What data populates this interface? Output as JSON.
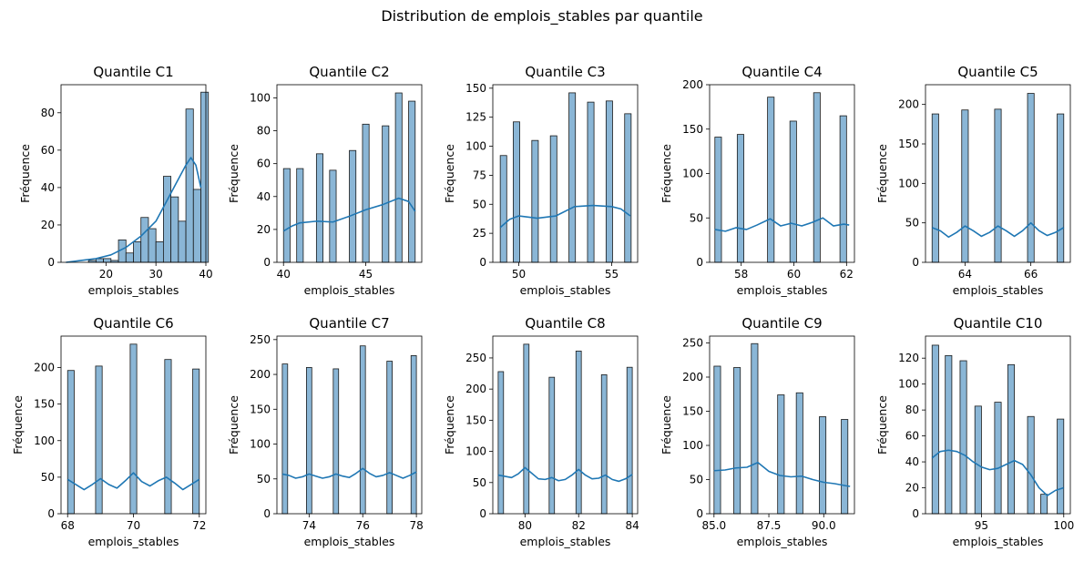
{
  "figure": {
    "suptitle": "Distribution de emplois_stables par quantile",
    "bar_color": "#8ab6d6",
    "bar_edge": "#1a1a1a",
    "kde_color": "#1f77b4"
  },
  "chart_data": [
    {
      "type": "bar",
      "title": "Quantile C1",
      "xlabel": "emplois_stables",
      "ylabel": "Fréquence",
      "xlim": [
        11,
        40
      ],
      "ylim": [
        0,
        95
      ],
      "xticks": [
        20,
        30,
        40
      ],
      "xtick_labels": [
        "20",
        "30",
        "40"
      ],
      "yticks": [
        0,
        20,
        40,
        60,
        80
      ],
      "ytick_labels": [
        "0",
        "20",
        "40",
        "60",
        "80"
      ],
      "bars": [
        [
          12.0,
          13.5,
          0
        ],
        [
          13.5,
          15.0,
          0
        ],
        [
          15.0,
          16.5,
          0
        ],
        [
          16.5,
          18.0,
          1
        ],
        [
          18.0,
          19.5,
          2
        ],
        [
          19.5,
          21.0,
          2
        ],
        [
          21.0,
          22.5,
          1
        ],
        [
          22.5,
          24.0,
          12
        ],
        [
          24.0,
          25.5,
          5
        ],
        [
          25.5,
          27.0,
          11
        ],
        [
          27.0,
          28.5,
          24
        ],
        [
          28.5,
          30.0,
          18
        ],
        [
          30.0,
          31.5,
          11
        ],
        [
          31.5,
          33.0,
          46
        ],
        [
          33.0,
          34.5,
          35
        ],
        [
          34.5,
          36.0,
          22
        ],
        [
          36.0,
          37.5,
          82
        ],
        [
          37.5,
          39.0,
          39
        ],
        [
          39.0,
          40.5,
          91
        ]
      ],
      "kde_x": [
        12,
        15,
        18,
        21,
        24,
        27,
        30,
        32,
        34,
        36,
        37,
        38,
        39
      ],
      "kde_y": [
        0,
        1,
        2,
        4,
        8,
        14,
        22,
        32,
        42,
        52,
        56,
        52,
        40
      ]
    },
    {
      "type": "bar",
      "title": "Quantile C2",
      "xlabel": "emplois_stables",
      "ylabel": "Fréquence",
      "xlim": [
        39.6,
        48.4
      ],
      "ylim": [
        0,
        108
      ],
      "xticks": [
        40,
        45
      ],
      "xtick_labels": [
        "40",
        "45"
      ],
      "yticks": [
        0,
        20,
        40,
        60,
        80,
        100
      ],
      "ytick_labels": [
        "0",
        "20",
        "40",
        "60",
        "80",
        "100"
      ],
      "bars": [
        [
          40.0,
          40.4,
          57
        ],
        [
          40.8,
          41.2,
          57
        ],
        [
          42.0,
          42.4,
          66
        ],
        [
          42.8,
          43.2,
          56
        ],
        [
          44.0,
          44.4,
          68
        ],
        [
          44.8,
          45.2,
          84
        ],
        [
          46.0,
          46.4,
          83
        ],
        [
          46.8,
          47.2,
          103
        ],
        [
          47.6,
          48.0,
          98
        ]
      ],
      "kde_x": [
        40,
        40.5,
        41,
        42,
        43,
        44,
        45,
        46,
        47,
        47.6,
        48
      ],
      "kde_y": [
        19,
        22,
        24,
        25,
        24.5,
        28,
        32,
        35,
        39,
        37,
        31
      ]
    },
    {
      "type": "bar",
      "title": "Quantile C3",
      "xlabel": "emplois_stables",
      "ylabel": "Fréquence",
      "xlim": [
        48.6,
        56.4
      ],
      "ylim": [
        0,
        153
      ],
      "xticks": [
        50,
        55
      ],
      "xtick_labels": [
        "50",
        "55"
      ],
      "yticks": [
        0,
        25,
        50,
        75,
        100,
        125,
        150
      ],
      "ytick_labels": [
        "0",
        "25",
        "50",
        "75",
        "100",
        "125",
        "150"
      ],
      "bars": [
        [
          49.0,
          49.35,
          92
        ],
        [
          49.7,
          50.05,
          121
        ],
        [
          50.7,
          51.05,
          105
        ],
        [
          51.7,
          52.05,
          109
        ],
        [
          52.7,
          53.05,
          146
        ],
        [
          53.7,
          54.05,
          138
        ],
        [
          54.7,
          55.05,
          139
        ],
        [
          55.7,
          56.05,
          128
        ]
      ],
      "kde_x": [
        49,
        49.5,
        50,
        51,
        52,
        53,
        54,
        55,
        55.5,
        56
      ],
      "kde_y": [
        30,
        37,
        40,
        38,
        40,
        48,
        49,
        48,
        46,
        40
      ]
    },
    {
      "type": "bar",
      "title": "Quantile C4",
      "xlabel": "emplois_stables",
      "ylabel": "Fréquence",
      "xlim": [
        56.8,
        62.3
      ],
      "ylim": [
        0,
        200
      ],
      "xticks": [
        58,
        60,
        62
      ],
      "xtick_labels": [
        "58",
        "60",
        "62"
      ],
      "yticks": [
        0,
        50,
        100,
        150,
        200
      ],
      "ytick_labels": [
        "0",
        "50",
        "100",
        "150",
        "200"
      ],
      "bars": [
        [
          57.0,
          57.25,
          141
        ],
        [
          57.85,
          58.1,
          144
        ],
        [
          59.0,
          59.25,
          186
        ],
        [
          59.85,
          60.1,
          159
        ],
        [
          60.75,
          61.0,
          191
        ],
        [
          61.75,
          62.0,
          165
        ]
      ],
      "kde_x": [
        57,
        57.4,
        57.8,
        58.2,
        58.6,
        59.1,
        59.5,
        59.9,
        60.3,
        60.7,
        61.1,
        61.5,
        61.9,
        62.1
      ],
      "kde_y": [
        37,
        35,
        39,
        37,
        42,
        49,
        41,
        44,
        41,
        45,
        50,
        41,
        43,
        42
      ]
    },
    {
      "type": "bar",
      "title": "Quantile C5",
      "xlabel": "emplois_stables",
      "ylabel": "Fréquence",
      "xlim": [
        62.8,
        67.2
      ],
      "ylim": [
        0,
        225
      ],
      "xticks": [
        64,
        66
      ],
      "xtick_labels": [
        "64",
        "66"
      ],
      "yticks": [
        0,
        50,
        100,
        150,
        200
      ],
      "ytick_labels": [
        "0",
        "50",
        "100",
        "150",
        "200"
      ],
      "bars": [
        [
          63.0,
          63.2,
          188
        ],
        [
          63.9,
          64.1,
          193
        ],
        [
          64.9,
          65.1,
          194
        ],
        [
          65.9,
          66.1,
          214
        ],
        [
          66.8,
          67.0,
          188
        ]
      ],
      "kde_x": [
        63,
        63.25,
        63.5,
        63.75,
        64,
        64.25,
        64.5,
        64.75,
        65,
        65.25,
        65.5,
        65.75,
        66,
        66.25,
        66.5,
        66.75,
        67
      ],
      "kde_y": [
        44,
        40,
        32,
        38,
        46,
        40,
        33,
        38,
        46,
        40,
        33,
        40,
        50,
        40,
        34,
        38,
        44
      ]
    },
    {
      "type": "bar",
      "title": "Quantile C6",
      "xlabel": "emplois_stables",
      "ylabel": "Fréquence",
      "xlim": [
        67.8,
        72.2
      ],
      "ylim": [
        0,
        243
      ],
      "xticks": [
        68,
        70,
        72
      ],
      "xtick_labels": [
        "68",
        "70",
        "72"
      ],
      "yticks": [
        0,
        50,
        100,
        150,
        200
      ],
      "ytick_labels": [
        "0",
        "50",
        "100",
        "150",
        "200"
      ],
      "bars": [
        [
          68.0,
          68.2,
          196
        ],
        [
          68.85,
          69.05,
          202
        ],
        [
          69.9,
          70.1,
          232
        ],
        [
          70.95,
          71.15,
          211
        ],
        [
          71.8,
          72.0,
          198
        ]
      ],
      "kde_x": [
        68,
        68.25,
        68.5,
        68.75,
        69,
        69.25,
        69.5,
        69.75,
        70,
        70.25,
        70.5,
        70.75,
        71,
        71.25,
        71.5,
        71.75,
        72
      ],
      "kde_y": [
        47,
        40,
        33,
        40,
        48,
        40,
        35,
        45,
        56,
        44,
        38,
        45,
        50,
        42,
        33,
        40,
        47
      ]
    },
    {
      "type": "bar",
      "title": "Quantile C7",
      "xlabel": "emplois_stables",
      "ylabel": "Fréquence",
      "xlim": [
        72.8,
        78.2
      ],
      "ylim": [
        0,
        255
      ],
      "xticks": [
        74,
        76,
        78
      ],
      "xtick_labels": [
        "74",
        "76",
        "78"
      ],
      "yticks": [
        0,
        50,
        100,
        150,
        200,
        250
      ],
      "ytick_labels": [
        "0",
        "50",
        "100",
        "150",
        "200",
        "250"
      ],
      "bars": [
        [
          73.0,
          73.2,
          215
        ],
        [
          73.9,
          74.1,
          210
        ],
        [
          74.9,
          75.1,
          208
        ],
        [
          75.9,
          76.1,
          241
        ],
        [
          76.9,
          77.1,
          219
        ],
        [
          77.8,
          78.0,
          227
        ]
      ],
      "kde_x": [
        73,
        73.25,
        73.5,
        73.75,
        74,
        74.25,
        74.5,
        74.75,
        75,
        75.25,
        75.5,
        75.75,
        76,
        76.25,
        76.5,
        76.75,
        77,
        77.25,
        77.5,
        77.75,
        78
      ],
      "kde_y": [
        57,
        55,
        51,
        53,
        57,
        54,
        51,
        53,
        57,
        54,
        52,
        58,
        65,
        58,
        53,
        55,
        59,
        55,
        51,
        55,
        60
      ]
    },
    {
      "type": "bar",
      "title": "Quantile C8",
      "xlabel": "emplois_stables",
      "ylabel": "Fréquence",
      "xlim": [
        78.8,
        84.2
      ],
      "ylim": [
        0,
        285
      ],
      "xticks": [
        80,
        82,
        84
      ],
      "xtick_labels": [
        "80",
        "82",
        "84"
      ],
      "yticks": [
        0,
        50,
        100,
        150,
        200,
        250
      ],
      "ytick_labels": [
        "0",
        "50",
        "100",
        "150",
        "200",
        "250"
      ],
      "bars": [
        [
          79.0,
          79.2,
          228
        ],
        [
          79.95,
          80.15,
          272
        ],
        [
          80.9,
          81.1,
          219
        ],
        [
          81.9,
          82.1,
          261
        ],
        [
          82.85,
          83.05,
          223
        ],
        [
          83.8,
          84.0,
          235
        ]
      ],
      "kde_x": [
        79,
        79.25,
        79.5,
        79.75,
        80,
        80.25,
        80.5,
        80.75,
        81,
        81.25,
        81.5,
        81.75,
        82,
        82.25,
        82.5,
        82.75,
        83,
        83.25,
        83.5,
        83.75,
        84
      ],
      "kde_y": [
        62,
        60,
        58,
        64,
        74,
        65,
        56,
        55,
        58,
        53,
        55,
        62,
        71,
        62,
        56,
        57,
        62,
        55,
        52,
        56,
        63
      ]
    },
    {
      "type": "bar",
      "title": "Quantile C9",
      "xlabel": "emplois_stables",
      "ylabel": "Fréquence",
      "xlim": [
        84.8,
        91.4
      ],
      "ylim": [
        0,
        260
      ],
      "xticks": [
        85.0,
        87.5,
        90.0
      ],
      "xtick_labels": [
        "85.0",
        "87.5",
        "90.0"
      ],
      "yticks": [
        0,
        50,
        100,
        150,
        200,
        250
      ],
      "ytick_labels": [
        "0",
        "50",
        "100",
        "150",
        "200",
        "250"
      ],
      "bars": [
        [
          85.0,
          85.3,
          216
        ],
        [
          85.9,
          86.2,
          214
        ],
        [
          86.7,
          87.0,
          249
        ],
        [
          87.9,
          88.2,
          174
        ],
        [
          88.75,
          89.05,
          177
        ],
        [
          89.8,
          90.1,
          142
        ],
        [
          90.8,
          91.1,
          138
        ]
      ],
      "kde_x": [
        85,
        85.5,
        86,
        86.5,
        87,
        87.5,
        88,
        88.5,
        89,
        89.5,
        90,
        90.5,
        91,
        91.2
      ],
      "kde_y": [
        63,
        64,
        67,
        68,
        75,
        62,
        56,
        54,
        55,
        50,
        46,
        44,
        41,
        40
      ]
    },
    {
      "type": "bar",
      "title": "Quantile C10",
      "xlabel": "emplois_stables",
      "ylabel": "Fréquence",
      "xlim": [
        91.6,
        100.4
      ],
      "ylim": [
        0,
        137
      ],
      "xticks": [
        95,
        100
      ],
      "xtick_labels": [
        "95",
        "100"
      ],
      "yticks": [
        0,
        20,
        40,
        60,
        80,
        100,
        120
      ],
      "ytick_labels": [
        "0",
        "20",
        "40",
        "60",
        "80",
        "100",
        "120"
      ],
      "bars": [
        [
          92.0,
          92.4,
          130
        ],
        [
          92.8,
          93.2,
          122
        ],
        [
          93.7,
          94.1,
          118
        ],
        [
          94.6,
          95.0,
          83
        ],
        [
          95.8,
          96.2,
          86
        ],
        [
          96.6,
          97.0,
          115
        ],
        [
          97.8,
          98.2,
          75
        ],
        [
          98.6,
          99.0,
          15
        ],
        [
          99.6,
          100.0,
          73
        ]
      ],
      "kde_x": [
        92,
        92.5,
        93,
        93.5,
        94,
        94.5,
        95,
        95.5,
        96,
        96.5,
        97,
        97.5,
        98,
        98.5,
        99,
        99.5,
        100
      ],
      "kde_y": [
        43,
        48,
        49,
        48,
        45,
        40,
        36,
        34,
        35,
        38,
        41,
        38,
        30,
        20,
        14,
        18,
        20
      ]
    }
  ]
}
